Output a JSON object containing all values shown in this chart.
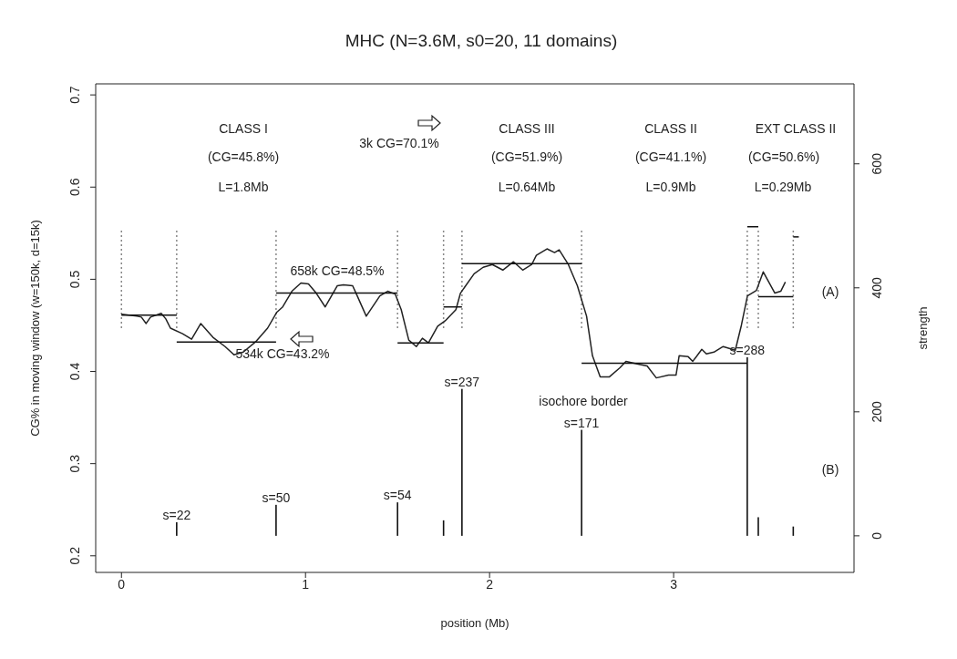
{
  "chart_data": {
    "type": "line",
    "title": "MHC (N=3.6M, s0=20, 11 domains)",
    "xlabel": "position (Mb)",
    "ylabel": "CG% in moving window (w=150k, d=15k)",
    "y2label": "strength",
    "xlim": [
      -0.14,
      3.98
    ],
    "xticks": [
      0,
      1,
      2,
      3
    ],
    "ylim": [
      0.182,
      0.712
    ],
    "yticks": [
      0.2,
      0.3,
      0.4,
      0.5,
      0.6,
      0.7
    ],
    "y2lim": [
      -59,
      729
    ],
    "y2ticks": [
      0,
      200,
      400,
      600
    ],
    "series": [
      {
        "color": "#222222",
        "x": [
          0,
          0.084,
          0.108,
          0.134,
          0.158,
          0.216,
          0.241,
          0.266,
          0.332,
          0.381,
          0.431,
          0.497,
          0.563,
          0.612,
          0.662,
          0.728,
          0.794,
          0.843,
          0.876,
          0.926,
          0.975,
          1.016,
          1.058,
          1.107,
          1.173,
          1.206,
          1.256,
          1.281,
          1.33,
          1.404,
          1.446,
          1.487,
          1.52,
          1.561,
          1.602,
          1.635,
          1.668,
          1.718,
          1.759,
          1.817,
          1.842,
          1.916,
          1.965,
          2.015,
          2.072,
          2.13,
          2.18,
          2.229,
          2.254,
          2.312,
          2.353,
          2.378,
          2.428,
          2.477,
          2.527,
          2.559,
          2.601,
          2.65,
          2.708,
          2.741,
          2.807,
          2.856,
          2.906,
          2.972,
          3.013,
          3.03,
          3.079,
          3.104,
          3.153,
          3.178,
          3.219,
          3.269,
          3.335,
          3.368,
          3.401,
          3.45,
          3.487,
          3.55,
          3.582,
          3.607
        ],
        "values": [
          0.462,
          0.46,
          0.459,
          0.452,
          0.459,
          0.463,
          0.457,
          0.447,
          0.441,
          0.435,
          0.452,
          0.437,
          0.427,
          0.418,
          0.421,
          0.432,
          0.447,
          0.464,
          0.47,
          0.487,
          0.496,
          0.495,
          0.485,
          0.47,
          0.493,
          0.494,
          0.493,
          0.482,
          0.46,
          0.482,
          0.487,
          0.484,
          0.467,
          0.434,
          0.427,
          0.436,
          0.431,
          0.449,
          0.455,
          0.467,
          0.485,
          0.506,
          0.513,
          0.516,
          0.51,
          0.519,
          0.51,
          0.516,
          0.526,
          0.533,
          0.529,
          0.532,
          0.516,
          0.493,
          0.46,
          0.417,
          0.394,
          0.394,
          0.404,
          0.411,
          0.408,
          0.406,
          0.393,
          0.396,
          0.396,
          0.417,
          0.416,
          0.411,
          0.424,
          0.419,
          0.421,
          0.427,
          0.423,
          0.45,
          0.482,
          0.488,
          0.508,
          0.485,
          0.487,
          0.497
        ]
      },
      {
        "color": "#111111",
        "x": [
          0,
          0.3
        ],
        "values": [
          0.461,
          0.461
        ]
      },
      {
        "color": "#111111",
        "x": [
          0.3,
          0.84
        ],
        "values": [
          0.432,
          0.432
        ]
      },
      {
        "color": "#111111",
        "x": [
          0.84,
          1.5
        ],
        "values": [
          0.485,
          0.485
        ]
      },
      {
        "color": "#111111",
        "x": [
          1.5,
          1.75
        ],
        "values": [
          0.431,
          0.431
        ]
      },
      {
        "color": "#111111",
        "x": [
          1.75,
          1.85
        ],
        "values": [
          0.47,
          0.47
        ]
      },
      {
        "color": "#111111",
        "x": [
          1.85,
          2.5
        ],
        "values": [
          0.517,
          0.517
        ]
      },
      {
        "color": "#111111",
        "x": [
          2.5,
          3.4
        ],
        "values": [
          0.409,
          0.409
        ]
      },
      {
        "color": "#111111",
        "x": [
          3.4,
          3.46
        ],
        "values": [
          0.557,
          0.557
        ]
      },
      {
        "color": "#111111",
        "x": [
          3.46,
          3.65
        ],
        "values": [
          0.481,
          0.481
        ]
      },
      {
        "color": "#111111",
        "x": [
          3.65,
          3.68
        ],
        "values": [
          0.546,
          0.546
        ]
      },
      {
        "type": "bar",
        "axis": "y2",
        "color": "#111111",
        "x": [
          0.3,
          0.84,
          1.5,
          1.75,
          1.85,
          2.5,
          3.4,
          3.46,
          3.65
        ],
        "values": [
          22,
          50,
          54,
          25,
          237,
          171,
          288,
          30,
          15
        ],
        "value_labels": [
          "s=22",
          "s=50",
          "s=54",
          null,
          "s=237",
          "s=171",
          "s=288",
          null,
          null
        ]
      }
    ],
    "ref_lines": [
      {
        "axis": "x",
        "value": 0,
        "color": "#888888",
        "line_style": "dotted"
      },
      {
        "axis": "x",
        "value": 0.3,
        "color": "#888888",
        "line_style": "dotted"
      },
      {
        "axis": "x",
        "value": 0.84,
        "color": "#888888",
        "line_style": "dotted"
      },
      {
        "axis": "x",
        "value": 1.5,
        "color": "#888888",
        "line_style": "dotted"
      },
      {
        "axis": "x",
        "value": 1.75,
        "color": "#888888",
        "line_style": "dotted"
      },
      {
        "axis": "x",
        "value": 1.85,
        "color": "#888888",
        "line_style": "dotted"
      },
      {
        "axis": "x",
        "value": 2.5,
        "color": "#888888",
        "line_style": "dotted"
      },
      {
        "axis": "x",
        "value": 3.4,
        "color": "#888888",
        "line_style": "dotted"
      },
      {
        "axis": "x",
        "value": 3.46,
        "color": "#888888",
        "line_style": "dotted"
      },
      {
        "axis": "x",
        "value": 3.65,
        "color": "#888888",
        "line_style": "dotted"
      }
    ],
    "annotations": [
      "CLASS I",
      "(CG=45.8%)",
      "L=1.8Mb",
      "3k CG=70.1%",
      "CLASS III",
      "(CG=51.9%)",
      "L=0.64Mb",
      "CLASS II",
      "(CG=41.1%)",
      "L=0.9Mb",
      "EXT CLASS II",
      "(CG=50.6%)",
      "L=0.29Mb",
      "658k CG=48.5%",
      "534k CG=43.2%",
      "isochore border",
      "(A)",
      "(B)"
    ]
  }
}
